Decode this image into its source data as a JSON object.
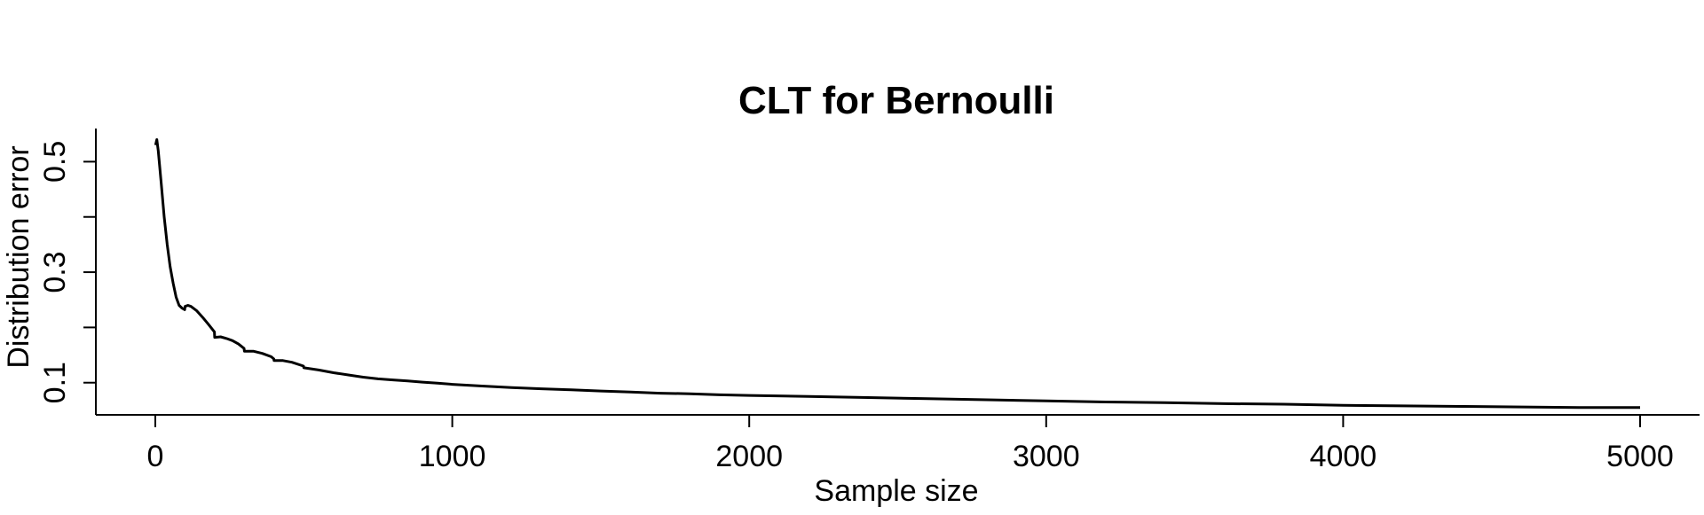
{
  "chart_data": {
    "type": "line",
    "title": "CLT for Bernoulli",
    "xlabel": "Sample size",
    "ylabel": "Distribution error",
    "xlim": [
      0,
      5000
    ],
    "ylim": [
      0.045,
      0.56
    ],
    "grid": false,
    "x_ticks": [
      0,
      1000,
      2000,
      3000,
      4000,
      5000
    ],
    "x_tick_labels": [
      "0",
      "1000",
      "2000",
      "3000",
      "4000",
      "5000"
    ],
    "y_ticks": [
      0.1,
      0.2,
      0.3,
      0.4,
      0.5
    ],
    "y_tick_labels": [
      "0.1",
      "",
      "0.3",
      "",
      "0.5"
    ],
    "line_color": "#000000",
    "series": [
      {
        "x": [
          1,
          5,
          10,
          20,
          30,
          40,
          50,
          60,
          70,
          80,
          90,
          99,
          100,
          110,
          120,
          140,
          160,
          180,
          199,
          200,
          220,
          240,
          260,
          280,
          299,
          300,
          330,
          360,
          390,
          399,
          400,
          430,
          460,
          499,
          500,
          550,
          600,
          650,
          700,
          750,
          800,
          850,
          900,
          950,
          1000,
          1100,
          1200,
          1300,
          1400,
          1500,
          1600,
          1700,
          1800,
          1900,
          2000,
          2200,
          2400,
          2600,
          2800,
          3000,
          3200,
          3400,
          3600,
          3800,
          4000,
          4200,
          4400,
          4600,
          4800,
          5000
        ],
        "y": [
          0.53,
          0.54,
          0.52,
          0.46,
          0.4,
          0.35,
          0.31,
          0.28,
          0.255,
          0.24,
          0.235,
          0.232,
          0.238,
          0.24,
          0.238,
          0.23,
          0.218,
          0.205,
          0.192,
          0.182,
          0.183,
          0.18,
          0.176,
          0.17,
          0.162,
          0.157,
          0.157,
          0.153,
          0.147,
          0.143,
          0.14,
          0.14,
          0.137,
          0.13,
          0.127,
          0.123,
          0.118,
          0.114,
          0.11,
          0.107,
          0.105,
          0.103,
          0.101,
          0.099,
          0.097,
          0.094,
          0.091,
          0.089,
          0.087,
          0.085,
          0.083,
          0.081,
          0.08,
          0.078,
          0.077,
          0.075,
          0.073,
          0.071,
          0.069,
          0.067,
          0.065,
          0.064,
          0.062,
          0.061,
          0.059,
          0.058,
          0.057,
          0.056,
          0.055,
          0.055
        ]
      }
    ]
  }
}
